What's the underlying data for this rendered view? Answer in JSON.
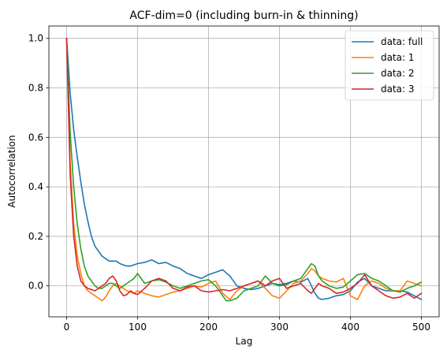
{
  "chart_data": {
    "type": "line",
    "title": "ACF-dim=0 (including burn-in & thinning)",
    "xlabel": "Lag",
    "ylabel": "Autocorrelation",
    "xlim": [
      -25,
      525
    ],
    "ylim": [
      -0.125,
      1.05
    ],
    "xticks": [
      0,
      100,
      200,
      300,
      400,
      500
    ],
    "xtick_labels": [
      "0",
      "100",
      "200",
      "300",
      "400",
      "500"
    ],
    "yticks": [
      0.0,
      0.2,
      0.4,
      0.6,
      0.8,
      1.0
    ],
    "ytick_labels": [
      "0.0",
      "0.2",
      "0.4",
      "0.6",
      "0.8",
      "1.0"
    ],
    "grid": true,
    "legend_position": "top-right",
    "series": [
      {
        "name": "data: full",
        "color": "#1f77b4",
        "x": [
          0,
          5,
          10,
          15,
          20,
          25,
          30,
          35,
          40,
          45,
          50,
          55,
          60,
          65,
          70,
          75,
          80,
          85,
          90,
          95,
          100,
          110,
          120,
          130,
          140,
          150,
          160,
          170,
          180,
          190,
          200,
          210,
          220,
          230,
          240,
          250,
          260,
          270,
          280,
          290,
          300,
          310,
          320,
          330,
          340,
          345,
          350,
          355,
          360,
          370,
          380,
          390,
          400,
          410,
          420,
          430,
          440,
          450,
          460,
          470,
          480,
          490,
          500
        ],
        "y": [
          1.0,
          0.78,
          0.63,
          0.52,
          0.42,
          0.33,
          0.26,
          0.2,
          0.16,
          0.14,
          0.12,
          0.11,
          0.1,
          0.1,
          0.1,
          0.09,
          0.085,
          0.08,
          0.08,
          0.085,
          0.09,
          0.095,
          0.105,
          0.09,
          0.095,
          0.08,
          0.07,
          0.05,
          0.04,
          0.03,
          0.045,
          0.055,
          0.065,
          0.04,
          0.0,
          -0.01,
          -0.015,
          -0.01,
          0.0,
          0.01,
          0.005,
          0.01,
          0.02,
          0.015,
          0.03,
          0.0,
          -0.03,
          -0.05,
          -0.055,
          -0.05,
          -0.04,
          -0.035,
          -0.02,
          0.015,
          0.03,
          0.0,
          -0.01,
          -0.02,
          -0.02,
          -0.02,
          -0.025,
          -0.04,
          -0.055
        ]
      },
      {
        "name": "data: 1",
        "color": "#ff7f0e",
        "x": [
          0,
          5,
          10,
          15,
          20,
          25,
          30,
          35,
          40,
          45,
          50,
          55,
          60,
          65,
          70,
          75,
          80,
          85,
          90,
          95,
          100,
          110,
          120,
          130,
          140,
          150,
          160,
          170,
          180,
          190,
          200,
          210,
          220,
          230,
          240,
          250,
          260,
          270,
          280,
          290,
          300,
          310,
          320,
          330,
          340,
          345,
          350,
          355,
          360,
          370,
          380,
          390,
          400,
          410,
          420,
          430,
          440,
          450,
          460,
          470,
          480,
          490,
          500
        ],
        "y": [
          1.0,
          0.5,
          0.25,
          0.12,
          0.05,
          0.0,
          -0.02,
          -0.03,
          -0.04,
          -0.05,
          -0.06,
          -0.045,
          -0.02,
          0.0,
          0.01,
          0.0,
          -0.01,
          -0.02,
          -0.025,
          -0.03,
          -0.02,
          -0.03,
          -0.04,
          -0.045,
          -0.035,
          -0.025,
          -0.02,
          -0.01,
          0.0,
          -0.005,
          0.01,
          0.02,
          -0.03,
          -0.055,
          -0.02,
          0.0,
          0.01,
          0.02,
          -0.01,
          -0.04,
          -0.05,
          -0.02,
          0.01,
          0.02,
          0.05,
          0.07,
          0.06,
          0.04,
          0.03,
          0.02,
          0.015,
          0.03,
          -0.04,
          -0.055,
          0.0,
          0.02,
          0.01,
          -0.01,
          -0.02,
          -0.02,
          0.02,
          0.01,
          0.0
        ]
      },
      {
        "name": "data: 2",
        "color": "#2ca02c",
        "x": [
          0,
          5,
          10,
          15,
          20,
          25,
          30,
          35,
          40,
          45,
          50,
          55,
          60,
          65,
          70,
          75,
          80,
          85,
          90,
          95,
          100,
          110,
          120,
          130,
          140,
          150,
          160,
          170,
          180,
          190,
          200,
          210,
          220,
          225,
          230,
          240,
          250,
          260,
          270,
          280,
          290,
          300,
          310,
          320,
          330,
          340,
          345,
          350,
          355,
          360,
          370,
          380,
          390,
          400,
          410,
          420,
          430,
          440,
          450,
          460,
          470,
          480,
          490,
          500
        ],
        "y": [
          1.0,
          0.62,
          0.4,
          0.25,
          0.15,
          0.08,
          0.04,
          0.02,
          0.0,
          -0.01,
          -0.01,
          0.0,
          0.01,
          0.01,
          0.0,
          -0.01,
          0.0,
          0.01,
          0.02,
          0.03,
          0.05,
          0.01,
          0.02,
          0.025,
          0.015,
          0.0,
          -0.01,
          0.0,
          0.01,
          0.02,
          0.025,
          0.0,
          -0.04,
          -0.06,
          -0.06,
          -0.05,
          -0.02,
          -0.01,
          0.0,
          0.04,
          0.01,
          0.0,
          0.005,
          0.02,
          0.03,
          0.07,
          0.09,
          0.08,
          0.04,
          0.02,
          0.0,
          -0.01,
          -0.005,
          0.02,
          0.045,
          0.05,
          0.03,
          0.02,
          0.0,
          -0.02,
          -0.025,
          -0.01,
          0.0,
          0.015
        ]
      },
      {
        "name": "data: 3",
        "color": "#d62728",
        "x": [
          0,
          5,
          10,
          15,
          20,
          25,
          30,
          35,
          40,
          45,
          50,
          55,
          60,
          65,
          70,
          75,
          80,
          85,
          90,
          95,
          100,
          110,
          120,
          130,
          140,
          150,
          160,
          170,
          180,
          190,
          200,
          210,
          220,
          230,
          240,
          250,
          260,
          270,
          280,
          290,
          300,
          310,
          320,
          330,
          340,
          345,
          350,
          355,
          360,
          370,
          380,
          390,
          400,
          410,
          420,
          430,
          440,
          450,
          460,
          470,
          480,
          490,
          500
        ],
        "y": [
          1.0,
          0.45,
          0.2,
          0.08,
          0.02,
          0.0,
          -0.01,
          -0.015,
          -0.02,
          -0.01,
          0.0,
          0.01,
          0.03,
          0.04,
          0.02,
          -0.02,
          -0.04,
          -0.035,
          -0.02,
          -0.03,
          -0.035,
          -0.01,
          0.02,
          0.03,
          0.02,
          -0.01,
          -0.02,
          -0.005,
          0.0,
          -0.02,
          -0.025,
          -0.02,
          -0.015,
          -0.02,
          -0.01,
          0.0,
          0.01,
          0.02,
          0.0,
          0.02,
          0.03,
          -0.01,
          0.0,
          0.01,
          -0.02,
          -0.03,
          -0.01,
          0.01,
          0.0,
          -0.01,
          -0.03,
          -0.025,
          -0.01,
          0.01,
          0.045,
          0.0,
          -0.02,
          -0.04,
          -0.05,
          -0.045,
          -0.03,
          -0.05,
          -0.03
        ]
      }
    ]
  }
}
